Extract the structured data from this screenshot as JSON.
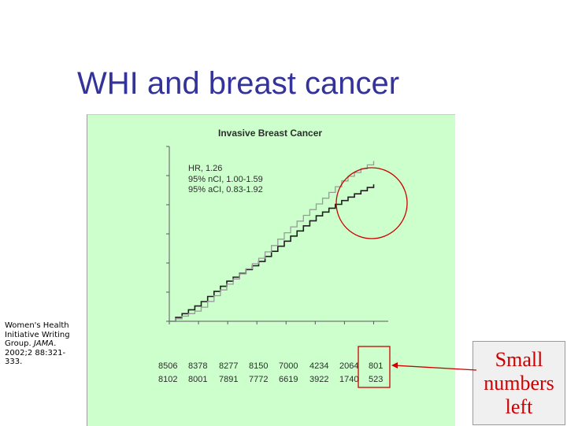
{
  "slide": {
    "title": "WHI and breast cancer",
    "citation": {
      "lead": "Women's Health Initiative Writing Group.",
      "journal": "JAMA",
      "rest": ". 2002;2 88:321-333."
    },
    "note": "Small numbers left"
  },
  "colors": {
    "title": "#333399",
    "panel": "#ccffcc",
    "annotation": "#cc0000",
    "series_estrogen_progestin": "#1f1f1f",
    "series_placebo": "#9a9a9a"
  },
  "chart_data": {
    "type": "line",
    "title": "Invasive Breast Cancer",
    "stats": [
      "HR, 1.26",
      "95% nCI, 1.00-1.59",
      "95% aCI, 0.83-1.92"
    ],
    "x": [
      0,
      1,
      2,
      3,
      4,
      5,
      6,
      7
    ],
    "xlim": [
      0,
      7.5
    ],
    "ylim": [
      0,
      0.03
    ],
    "series": [
      {
        "values": [
          0,
          0.003,
          0.007,
          0.01,
          0.014,
          0.018,
          0.021,
          0.0235
        ]
      },
      {
        "values": [
          0,
          0.002,
          0.0065,
          0.0105,
          0.0155,
          0.02,
          0.0245,
          0.0275
        ]
      }
    ],
    "at_risk_rows": [
      [
        "8506",
        "8378",
        "8277",
        "8150",
        "7000",
        "4234",
        "2064",
        "801"
      ],
      [
        "8102",
        "8001",
        "7891",
        "7772",
        "6619",
        "3922",
        "1740",
        "523"
      ]
    ],
    "annotations": [
      "circle around curve tails",
      "box around last at-risk column"
    ]
  }
}
